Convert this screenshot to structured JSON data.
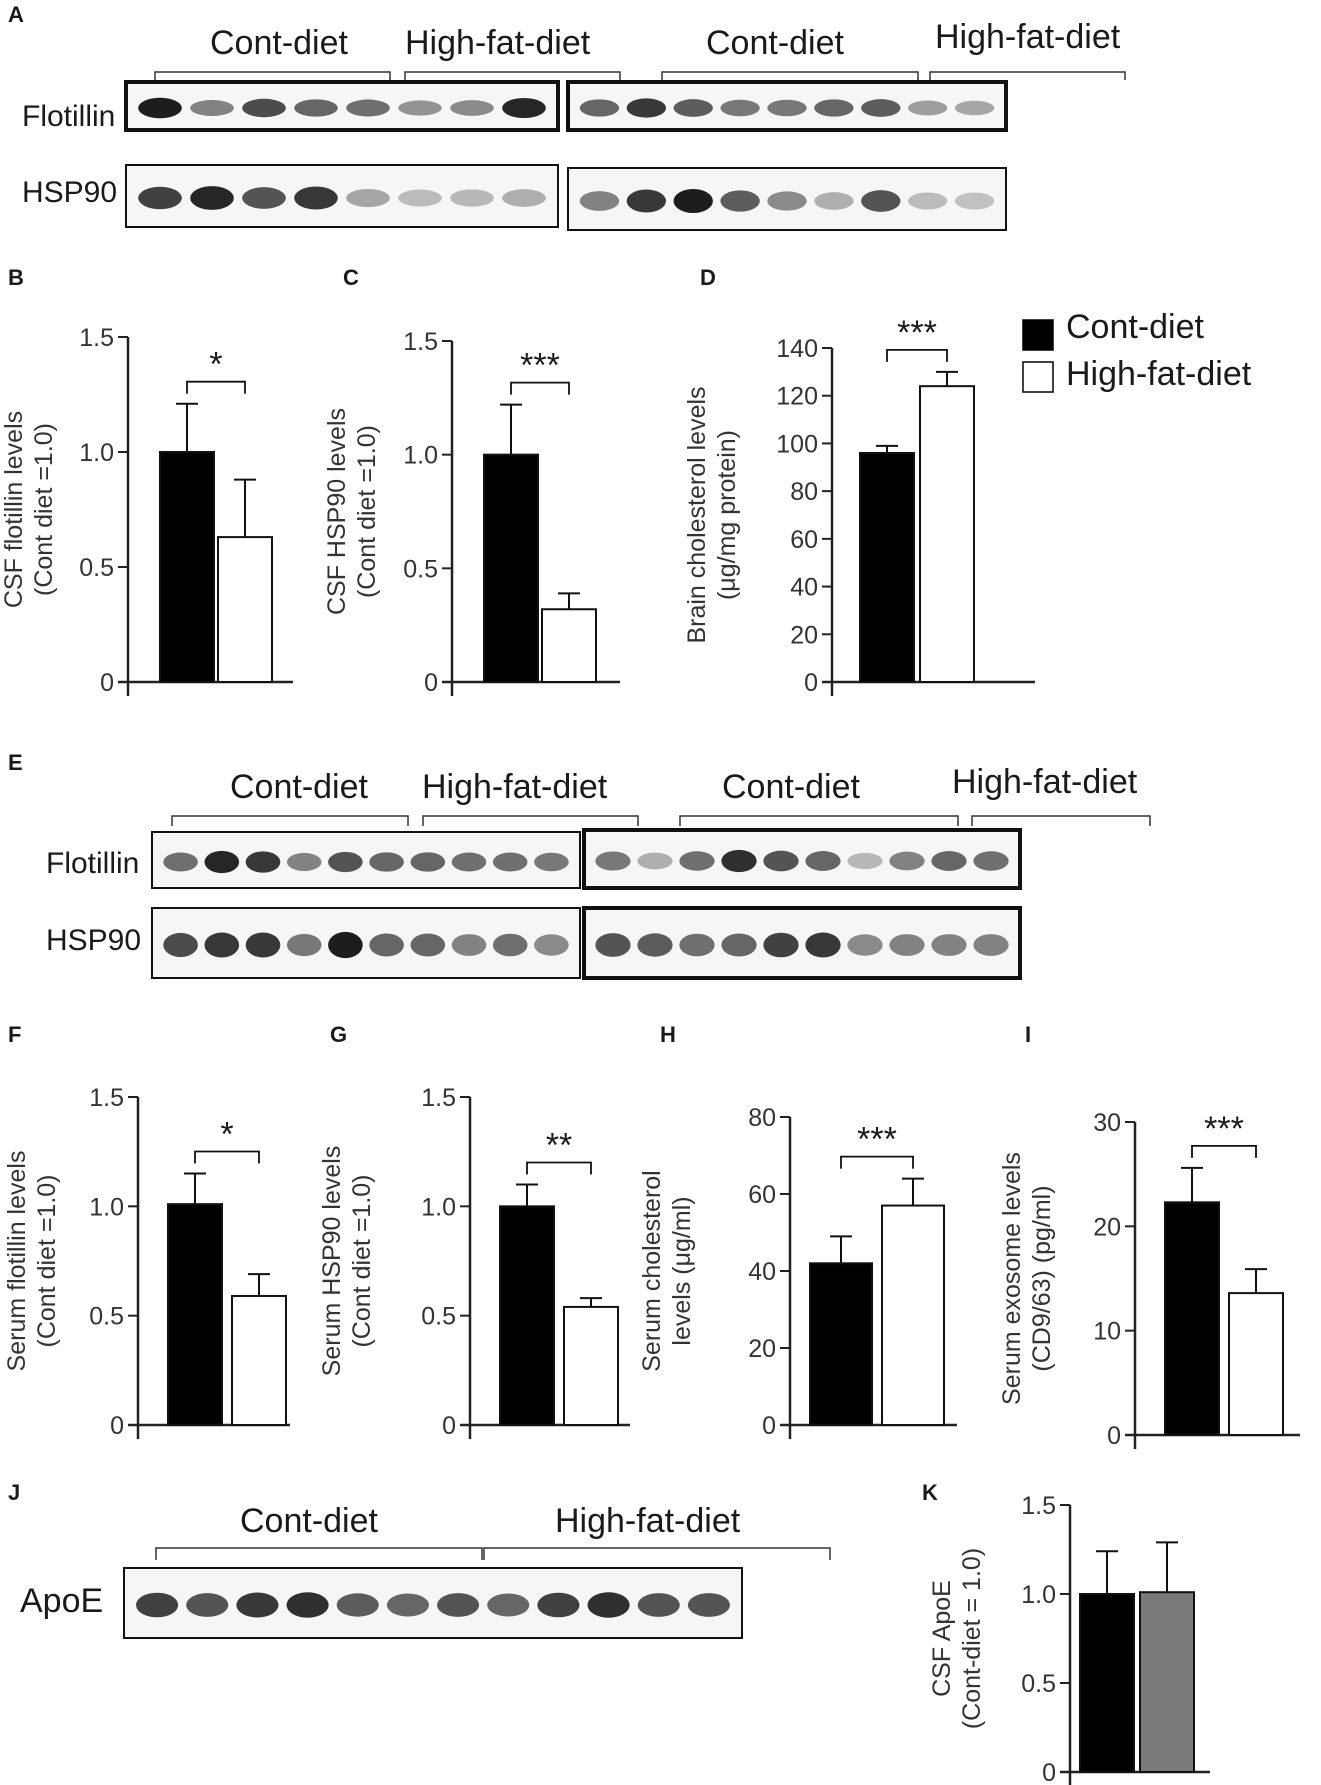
{
  "colors": {
    "cont": "#000000",
    "hfd": "#ffffff",
    "apoe_second": "#7a7a7a",
    "band": "#111111",
    "blot_bg": "#f6f6f6"
  },
  "legend": {
    "items": [
      "Cont-diet",
      "High-fat-diet"
    ],
    "placement": "top-right"
  },
  "blots": {
    "A": {
      "letter": "A",
      "groups": [
        "Cont-diet",
        "High-fat-diet",
        "Cont-diet",
        "High-fat-diet"
      ],
      "rows": [
        "Flotillin",
        "HSP90"
      ]
    },
    "E": {
      "letter": "E",
      "groups": [
        "Cont-diet",
        "High-fat-diet",
        "Cont-diet",
        "High-fat-diet"
      ],
      "rows": [
        "Flotillin",
        "HSP90"
      ]
    },
    "J": {
      "letter": "J",
      "groups": [
        "Cont-diet",
        "High-fat-diet"
      ],
      "rows": [
        "ApoE"
      ]
    }
  },
  "chart_data": [
    {
      "panel": "B",
      "type": "bar",
      "categories": [
        "Cont-diet",
        "High-fat-diet"
      ],
      "values": [
        1.0,
        0.63
      ],
      "errors": [
        0.21,
        0.25
      ],
      "ylabel": [
        "CSF flotillin levels",
        "(Cont diet =1.0)"
      ],
      "ylim": [
        0,
        1.5
      ],
      "yticks": [
        "0",
        "0.5",
        "1.0",
        "1.5"
      ],
      "significance": "*"
    },
    {
      "panel": "C",
      "type": "bar",
      "categories": [
        "Cont-diet",
        "High-fat-diet"
      ],
      "values": [
        1.0,
        0.32
      ],
      "errors": [
        0.22,
        0.07
      ],
      "ylabel": [
        "CSF HSP90 levels",
        "(Cont diet =1.0)"
      ],
      "ylim": [
        0,
        1.5
      ],
      "yticks": [
        "0",
        "0.5",
        "1.0",
        "1.5"
      ],
      "significance": "***"
    },
    {
      "panel": "D",
      "type": "bar",
      "categories": [
        "Cont-diet",
        "High-fat-diet"
      ],
      "values": [
        96,
        124
      ],
      "errors": [
        3,
        6
      ],
      "ylabel": [
        "Brain cholesterol levels",
        "(μg/mg protein)"
      ],
      "ylim": [
        0,
        140
      ],
      "yticks": [
        "0",
        "20",
        "40",
        "60",
        "80",
        "100",
        "120",
        "140"
      ],
      "significance": "***"
    },
    {
      "panel": "F",
      "type": "bar",
      "categories": [
        "Cont-diet",
        "High-fat-diet"
      ],
      "values": [
        1.01,
        0.59
      ],
      "errors": [
        0.14,
        0.1
      ],
      "ylabel": [
        "Serum flotillin levels",
        "(Cont diet =1.0)"
      ],
      "ylim": [
        0,
        1.5
      ],
      "yticks": [
        "0",
        "0.5",
        "1.0",
        "1.5"
      ],
      "significance": "*"
    },
    {
      "panel": "G",
      "type": "bar",
      "categories": [
        "Cont-diet",
        "High-fat-diet"
      ],
      "values": [
        1.0,
        0.54
      ],
      "errors": [
        0.1,
        0.04
      ],
      "ylabel": [
        "Serum HSP90 levels",
        "(Cont diet =1.0)"
      ],
      "ylim": [
        0,
        1.5
      ],
      "yticks": [
        "0",
        "0.5",
        "1.0",
        "1.5"
      ],
      "significance": "**"
    },
    {
      "panel": "H",
      "type": "bar",
      "categories": [
        "Cont-diet",
        "High-fat-diet"
      ],
      "values": [
        42,
        57
      ],
      "errors": [
        7,
        7
      ],
      "ylabel": [
        "Serum cholesterol",
        "levels (μg/ml)"
      ],
      "ylim": [
        0,
        80
      ],
      "yticks": [
        "0",
        "20",
        "40",
        "60",
        "80"
      ],
      "significance": "***"
    },
    {
      "panel": "I",
      "type": "bar",
      "categories": [
        "Cont-diet",
        "High-fat-diet"
      ],
      "values": [
        22.3,
        13.6
      ],
      "errors": [
        3.3,
        2.3
      ],
      "ylabel": [
        "Serum exosome levels",
        "(CD9/63) (pg/ml)"
      ],
      "ylim": [
        0,
        30
      ],
      "yticks": [
        "0",
        "10",
        "20",
        "30"
      ],
      "significance": "***"
    },
    {
      "panel": "K",
      "type": "bar",
      "categories": [
        "Cont-diet",
        "High-fat-diet"
      ],
      "values": [
        1.0,
        1.01
      ],
      "errors": [
        0.24,
        0.28
      ],
      "ylabel": [
        "CSF ApoE",
        "(Cont-diet = 1.0)"
      ],
      "ylim": [
        0,
        1.5
      ],
      "yticks": [
        "0",
        "0.5",
        "1.0",
        "1.5"
      ],
      "significance": ""
    }
  ]
}
